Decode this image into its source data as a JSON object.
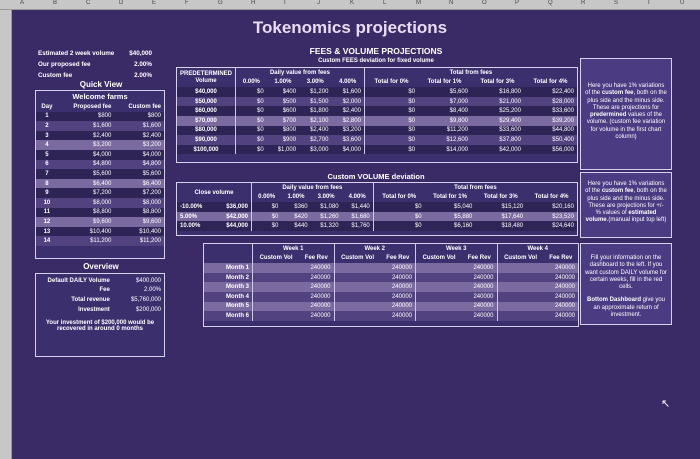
{
  "sheet": {
    "col_letters": [
      "A",
      "B",
      "C",
      "D",
      "E",
      "F",
      "G",
      "H",
      "I",
      "J",
      "K",
      "L",
      "M",
      "N",
      "O",
      "P",
      "Q",
      "R",
      "S",
      "T",
      "U"
    ],
    "title": "Tokenomics projections"
  },
  "inputs": [
    {
      "label": "Estimated 2 week volume",
      "value": "$40,000"
    },
    {
      "label": "Our proposed fee",
      "value": "2.00%"
    },
    {
      "label": "Custom fee",
      "value": "2.00%"
    }
  ],
  "quick_view": {
    "section_title": "Quick View",
    "table_title": "Welcome farms",
    "headers": [
      "Day",
      "Proposed fee",
      "Custom fee"
    ],
    "rows": [
      [
        "1",
        "$800",
        "$800"
      ],
      [
        "2",
        "$1,600",
        "$1,600"
      ],
      [
        "3",
        "$2,400",
        "$2,400"
      ],
      [
        "4",
        "$3,200",
        "$3,200"
      ],
      [
        "5",
        "$4,000",
        "$4,000"
      ],
      [
        "6",
        "$4,800",
        "$4,800"
      ],
      [
        "7",
        "$5,600",
        "$5,600"
      ],
      [
        "8",
        "$6,400",
        "$6,400"
      ],
      [
        "9",
        "$7,200",
        "$7,200"
      ],
      [
        "10",
        "$8,000",
        "$8,000"
      ],
      [
        "11",
        "$8,800",
        "$8,800"
      ],
      [
        "12",
        "$9,600",
        "$9,600"
      ],
      [
        "13",
        "$10,400",
        "$10,400"
      ],
      [
        "14",
        "$11,200",
        "$11,200"
      ]
    ]
  },
  "overview": {
    "section_title": "Overview",
    "rows": [
      [
        "Default DAILY Volume",
        "$400,000"
      ],
      [
        "Fee",
        "2.00%"
      ],
      [
        "Total revenue",
        "$5,760,000"
      ],
      [
        "Investment",
        "$200,000"
      ]
    ],
    "message": "Your investment of $200,000 would be recovered in around 0 months"
  },
  "fees": {
    "title": "FEES & VOLUME PROJECTIONS",
    "subtitle": "Custom FEES deviation for fixed volume",
    "col_group1": "Daily value from fees",
    "col_group2": "Total from fees",
    "first_header": "PREDETERMINED Volume",
    "headers": [
      "0.00%",
      "1.00%",
      "3.00%",
      "4.00%",
      "Total for 0%",
      "Total for 1%",
      "Total for 3%",
      "Total for 4%"
    ],
    "rows": [
      [
        "$40,000",
        "$0",
        "$400",
        "$1,200",
        "$1,600",
        "$0",
        "$5,600",
        "$16,800",
        "$22,400"
      ],
      [
        "$50,000",
        "$0",
        "$500",
        "$1,500",
        "$2,000",
        "$0",
        "$7,000",
        "$21,000",
        "$28,000"
      ],
      [
        "$60,000",
        "$0",
        "$600",
        "$1,800",
        "$2,400",
        "$0",
        "$8,400",
        "$25,200",
        "$33,600"
      ],
      [
        "$70,000",
        "$0",
        "$700",
        "$2,100",
        "$2,800",
        "$0",
        "$9,800",
        "$29,400",
        "$39,200"
      ],
      [
        "$80,000",
        "$0",
        "$800",
        "$2,400",
        "$3,200",
        "$0",
        "$11,200",
        "$33,600",
        "$44,800"
      ],
      [
        "$90,000",
        "$0",
        "$900",
        "$2,700",
        "$3,600",
        "$0",
        "$12,600",
        "$37,800",
        "$50,400"
      ],
      [
        "$100,000",
        "$0",
        "$1,000",
        "$3,000",
        "$4,000",
        "$0",
        "$14,000",
        "$42,000",
        "$56,000"
      ]
    ],
    "note_pre": "Here you have 1% variations of the ",
    "note_b1": "custom fee",
    "note_mid": ", both on the plus side and the minus side. These are projections for ",
    "note_b2": "predermined",
    "note_post": " values of the volume. (custom fee variation for volume in the first chart column)"
  },
  "volume": {
    "title": "Custom VOLUME deviation",
    "col_group1": "Daily value from fees",
    "col_group2": "Total from fees",
    "first_header": "Close volume",
    "headers": [
      "0.00%",
      "1.00%",
      "3.00%",
      "4.00%",
      "Total for 0%",
      "Total for 1%",
      "Total for 3%",
      "Total for 4%"
    ],
    "rows": [
      [
        "-10.00%",
        "$36,000",
        "$0",
        "$360",
        "$1,080",
        "$1,440",
        "$0",
        "$5,040",
        "$15,120",
        "$20,160"
      ],
      [
        "5.00%",
        "$42,000",
        "$0",
        "$420",
        "$1,260",
        "$1,680",
        "$0",
        "$5,880",
        "$17,640",
        "$23,520"
      ],
      [
        "10.00%",
        "$44,000",
        "$0",
        "$440",
        "$1,320",
        "$1,760",
        "$0",
        "$6,160",
        "$18,480",
        "$24,640"
      ]
    ],
    "note_pre": "Here you have 1% variations of the ",
    "note_b1": "custom fee",
    "note_mid": ", both on the plus side and the minus side. These are projections for +/- % values of ",
    "note_b2": "estimated volume",
    "note_post": ".(manual input top left)"
  },
  "monthly": {
    "weeks": [
      "Week 1",
      "Week 2",
      "Week 3",
      "Week 4"
    ],
    "sub": [
      "Custom Vol",
      "Fee Rev"
    ],
    "rows": [
      {
        "label": "Month 1",
        "vals": [
          "",
          "240000",
          "",
          "240000",
          "",
          "240000",
          "",
          "240000"
        ]
      },
      {
        "label": "Month 2",
        "vals": [
          "",
          "240000",
          "",
          "240000",
          "",
          "240000",
          "",
          "240000"
        ]
      },
      {
        "label": "Month 3",
        "vals": [
          "",
          "240000",
          "",
          "240000",
          "",
          "240000",
          "",
          "240000"
        ]
      },
      {
        "label": "Month 4",
        "vals": [
          "",
          "240000",
          "",
          "240000",
          "",
          "240000",
          "",
          "240000"
        ]
      },
      {
        "label": "Month 5",
        "vals": [
          "",
          "240000",
          "",
          "240000",
          "",
          "240000",
          "",
          "240000"
        ]
      },
      {
        "label": "Month 6",
        "vals": [
          "",
          "240000",
          "",
          "240000",
          "",
          "240000",
          "",
          "240000"
        ]
      }
    ],
    "note1": "Fill your information on the dashboard to the left. If you want custom DAILY volume for certain weeks, fill in the red cells.",
    "note2_b": "Bottom Dashboard",
    "note2": " give you an approximate return of investment."
  },
  "colors": {
    "bg": "#3a2a66",
    "dark": "#2e2456",
    "mid": "#52427f",
    "light": "#7b6aa0",
    "border": "#d6d1f0"
  }
}
